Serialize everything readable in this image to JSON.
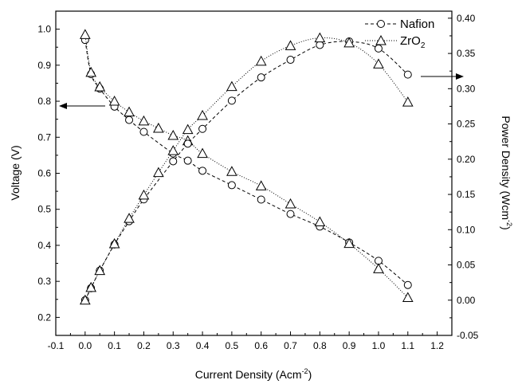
{
  "chart_data": {
    "type": "line",
    "xlabel": "Current Density (Acm",
    "xlabel_sup": "-2",
    "xlabel_end": ")",
    "ylabel_left": "Voltage (V)",
    "ylabel_right": "Power Density (Wcm",
    "ylabel_right_sup": "-2",
    "ylabel_right_end": ")",
    "xlim": [
      -0.1,
      1.25
    ],
    "ylim_left": [
      0.15,
      1.05
    ],
    "ylim_right": [
      -0.05,
      0.41
    ],
    "x_ticks": [
      "-0.1",
      "0.0",
      "0.1",
      "0.2",
      "0.3",
      "0.4",
      "0.5",
      "0.6",
      "0.7",
      "0.8",
      "0.9",
      "1.0",
      "1.1",
      "1.2"
    ],
    "y_left_ticks": [
      "0.2",
      "0.3",
      "0.4",
      "0.5",
      "0.6",
      "0.7",
      "0.8",
      "0.9",
      "1.0"
    ],
    "y_right_ticks": [
      "-0.05",
      "0.00",
      "0.05",
      "0.10",
      "0.15",
      "0.20",
      "0.25",
      "0.30",
      "0.35",
      "0.40"
    ],
    "legend": {
      "position": "top-right",
      "entries": [
        {
          "label": "Nafion",
          "marker": "circle",
          "dash": "dashed"
        },
        {
          "label": "ZrO",
          "sub": "2",
          "marker": "triangle",
          "dash": "dotted"
        }
      ]
    },
    "series": [
      {
        "name": "Nafion",
        "axis": "left",
        "marker": "circle",
        "dash": "dashed",
        "x": [
          0.0,
          0.02,
          0.05,
          0.1,
          0.15,
          0.2,
          0.3,
          0.35,
          0.4,
          0.5,
          0.6,
          0.7,
          0.8,
          0.9,
          1.0,
          1.1
        ],
        "y": [
          0.97,
          0.875,
          0.835,
          0.785,
          0.748,
          0.715,
          0.655,
          0.635,
          0.607,
          0.567,
          0.527,
          0.487,
          0.452,
          0.408,
          0.357,
          0.29
        ]
      },
      {
        "name": "ZrO2",
        "axis": "left",
        "marker": "triangle",
        "dash": "dotted",
        "x": [
          0.0,
          0.02,
          0.05,
          0.1,
          0.15,
          0.2,
          0.25,
          0.3,
          0.35,
          0.4,
          0.5,
          0.6,
          0.7,
          0.8,
          0.9,
          1.0,
          1.1
        ],
        "y": [
          0.985,
          0.88,
          0.84,
          0.8,
          0.77,
          0.745,
          0.725,
          0.705,
          0.69,
          0.655,
          0.605,
          0.565,
          0.515,
          0.465,
          0.405,
          0.335,
          0.255
        ]
      },
      {
        "name": "Nafion",
        "axis": "right",
        "marker": "circle",
        "dash": "dashed",
        "x": [
          0.0,
          0.02,
          0.05,
          0.1,
          0.15,
          0.2,
          0.3,
          0.35,
          0.4,
          0.5,
          0.6,
          0.7,
          0.8,
          0.9,
          1.0,
          1.1
        ],
        "y": [
          0.0,
          0.017,
          0.042,
          0.079,
          0.112,
          0.143,
          0.197,
          0.222,
          0.243,
          0.283,
          0.316,
          0.341,
          0.362,
          0.367,
          0.357,
          0.32
        ]
      },
      {
        "name": "ZrO2",
        "axis": "right",
        "marker": "triangle",
        "dash": "dotted",
        "x": [
          0.0,
          0.02,
          0.05,
          0.1,
          0.15,
          0.2,
          0.25,
          0.3,
          0.35,
          0.4,
          0.5,
          0.6,
          0.7,
          0.8,
          0.9,
          1.0,
          1.1
        ],
        "y": [
          0.0,
          0.018,
          0.042,
          0.08,
          0.116,
          0.149,
          0.181,
          0.212,
          0.242,
          0.262,
          0.303,
          0.339,
          0.361,
          0.372,
          0.365,
          0.335,
          0.281
        ]
      }
    ],
    "annotations": [
      {
        "kind": "arrow",
        "direction": "left",
        "points_to_axis": "left",
        "at_x": 0.09,
        "at_y_left": 0.78
      },
      {
        "kind": "arrow",
        "direction": "right",
        "points_to_axis": "right",
        "at_x": 1.13,
        "at_y_right": 0.32
      }
    ]
  }
}
